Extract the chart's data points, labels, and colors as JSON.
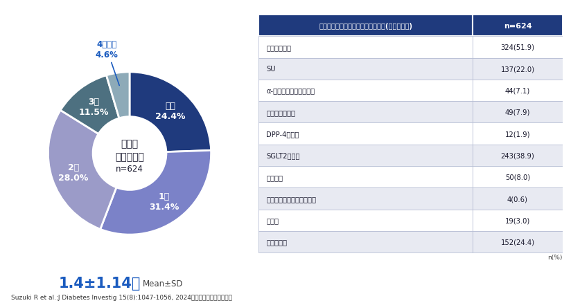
{
  "pie_labels": [
    "なし",
    "1剤",
    "2剤",
    "3剤",
    "4剤以上"
  ],
  "pie_values": [
    24.4,
    31.4,
    28.0,
    11.5,
    4.6
  ],
  "pie_colors": [
    "#1f3a7d",
    "#7b82c8",
    "#9b9bc8",
    "#4d7080",
    "#8daab8"
  ],
  "center_text_line1": "糖尿病",
  "center_text_line2": "治療薬の数",
  "center_text_line3": "n=624",
  "stat_text": "1.4±1.14剤",
  "stat_label": "Mean±SD",
  "table_header_col1": "処方されていた糖尿病治療薬の種類(配合剤除く)",
  "table_header_col2": "n=624",
  "table_rows": [
    [
      "メトホルミン",
      "324(51.9)"
    ],
    [
      "SU",
      "137(22.0)"
    ],
    [
      "α-グルコシダーゼ阴害薬",
      "44(7.1)"
    ],
    [
      "チアゾリジン薬",
      "49(7.9)"
    ],
    [
      "DPP-4陰害薬",
      "12(1.9)"
    ],
    [
      "SGLT2陰害薬",
      "243(38.9)"
    ],
    [
      "グリニド",
      "50(8.0)"
    ],
    [
      "アルドース還元酵素陰害薬",
      "4(0.6)"
    ],
    [
      "その他",
      "19(3.0)"
    ],
    [
      "治療薬なし",
      "152(24.4)"
    ]
  ],
  "table_unit": "n(%)",
  "footnote": "Suzuki R et al.:J Diabetes Investig 15(8):1047-1056, 2024より作図・抜粹して作表",
  "bg_color": "#ffffff",
  "header_bg": "#1f3a7d",
  "header_fg": "#ffffff",
  "row_bg_odd": "#ffffff",
  "row_bg_even": "#e8eaf2",
  "label_callout_color": "#1a5bbf",
  "border_color": "#b0b8d0"
}
